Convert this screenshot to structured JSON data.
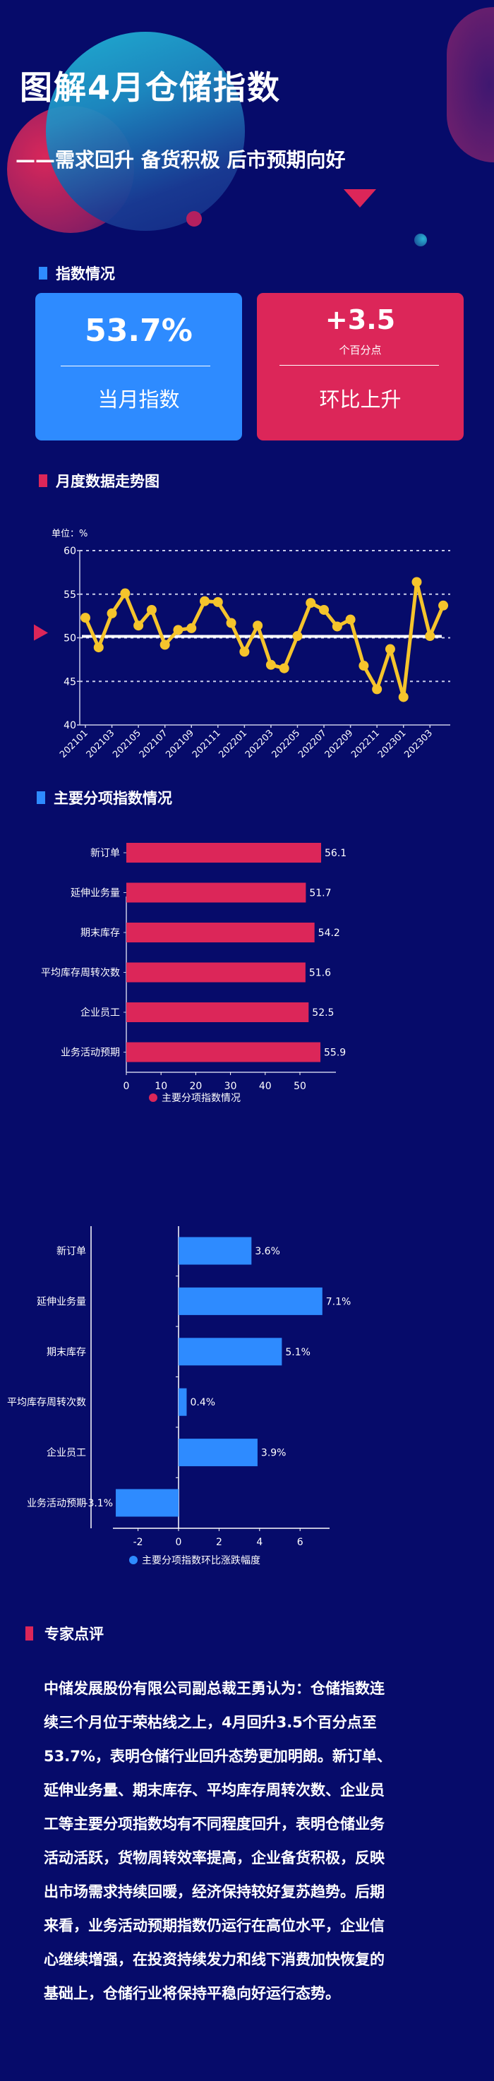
{
  "header": {
    "title": "图解4月仓储指数",
    "subtitle": "——需求回升 备货积极 后市预期向好"
  },
  "colors": {
    "background": "#060b6a",
    "blue": "#2e8bff",
    "red": "#dc2659",
    "line": "#f5c42c"
  },
  "sections": {
    "index": "指数情况",
    "trend": "月度数据走势图",
    "sub": "主要分项指数情况",
    "expert": "专家点评"
  },
  "cards": [
    {
      "value": "53.7%",
      "label": "当月指数"
    },
    {
      "value": "+3.5",
      "unit": "个百分点",
      "label": "环比上升"
    }
  ],
  "chart_data": [
    {
      "type": "line",
      "unit_label": "单位：%",
      "ylim": [
        40,
        60
      ],
      "yticks": [
        40,
        45,
        50,
        55,
        60
      ],
      "grid": "dashed horizontal",
      "reference_line": 50,
      "x": [
        "202101",
        "202102",
        "202103",
        "202104",
        "202105",
        "202106",
        "202107",
        "202108",
        "202109",
        "202110",
        "202111",
        "202112",
        "202201",
        "202202",
        "202203",
        "202204",
        "202205",
        "202206",
        "202207",
        "202208",
        "202209",
        "202210",
        "202211",
        "202212",
        "202301",
        "202302",
        "202303",
        "202304"
      ],
      "xtick_labels": [
        "202101",
        "202103",
        "202105",
        "202107",
        "202109",
        "202111",
        "202201",
        "202203",
        "202205",
        "202207",
        "202209",
        "202211",
        "202301",
        "202303"
      ],
      "values": [
        52.3,
        48.9,
        52.8,
        55.1,
        51.4,
        53.2,
        49.2,
        50.9,
        51.1,
        54.2,
        54.1,
        51.7,
        48.4,
        51.4,
        46.9,
        46.5,
        50.2,
        54.0,
        53.2,
        51.3,
        52.1,
        46.8,
        44.1,
        48.7,
        43.2,
        56.4,
        50.2,
        53.7
      ]
    },
    {
      "type": "bar",
      "orientation": "horizontal",
      "categories": [
        "新订单",
        "延伸业务量",
        "期末库存",
        "平均库存周转次数",
        "企业员工",
        "业务活动预期"
      ],
      "values": [
        56.1,
        51.7,
        54.2,
        51.6,
        52.5,
        55.9
      ],
      "data_labels": [
        "56.1",
        "51.7",
        "54.2",
        "51.6",
        "52.5",
        "55.9"
      ],
      "xlim": [
        0,
        59
      ],
      "xticks": [
        0,
        10,
        20,
        30,
        40,
        50
      ],
      "legend": "主要分项指数情况",
      "legend_position": "bottom"
    },
    {
      "type": "bar",
      "orientation": "horizontal",
      "categories": [
        "新订单",
        "延伸业务量",
        "期末库存",
        "平均库存周转次数",
        "企业员工",
        "业务活动预期"
      ],
      "values": [
        3.6,
        7.1,
        5.1,
        0.4,
        3.9,
        -3.1
      ],
      "data_labels": [
        "3.6%",
        "7.1%",
        "5.1%",
        "0.4%",
        "3.9%",
        "-3.1%"
      ],
      "xlim": [
        -3.2,
        7.5
      ],
      "xticks": [
        -2,
        0,
        2,
        4,
        6
      ],
      "legend": "主要分项指数环比涨跌幅度",
      "legend_position": "bottom"
    }
  ],
  "expert": {
    "lines": [
      "中储发展股份有限公司副总裁王勇认为：仓储指数连",
      "续三个月位于荣枯线之上，4月回升3.5个百分点至",
      "53.7%，表明仓储行业回升态势更加明朗。新订单、",
      "延伸业务量、期末库存、平均库存周转次数、企业员",
      "工等主要分项指数均有不同程度回升，表明仓储业务",
      "活动活跃，货物周转效率提高，企业备货积极，反映",
      "出市场需求持续回暖，经济保持较好复苏趋势。后期",
      "来看，业务活动预期指数仍运行在高位水平，企业信",
      "心继续增强，在投资持续发力和线下消费加快恢复的",
      "基础上，仓储行业将保持平稳向好运行态势。"
    ]
  }
}
